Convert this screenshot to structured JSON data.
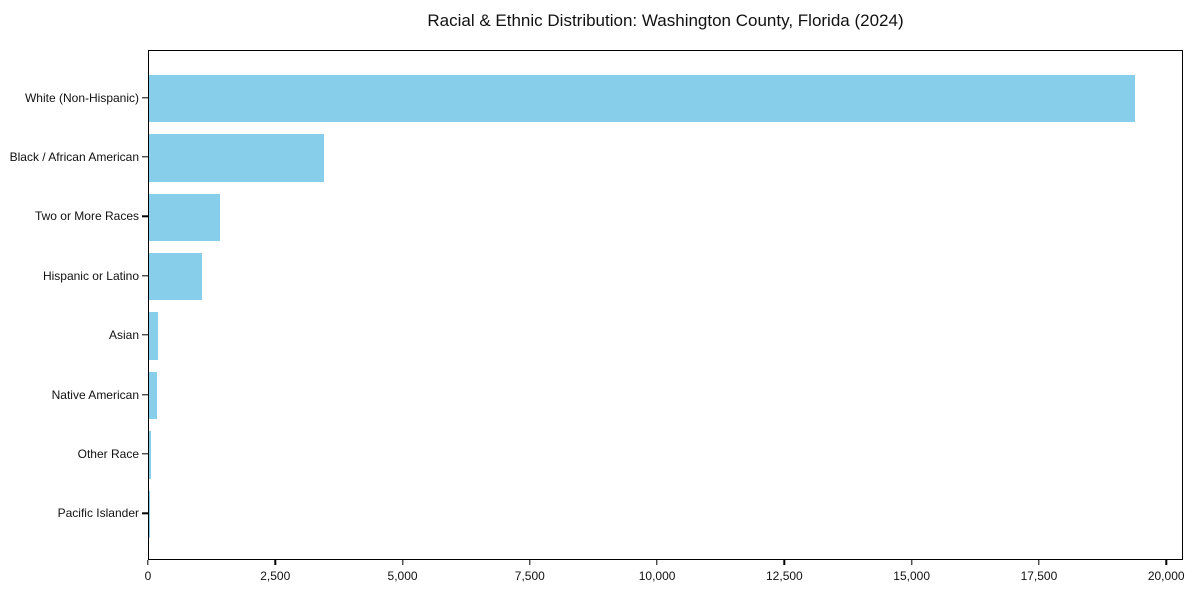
{
  "title": "Racial & Ethnic Distribution: Washington County, Florida (2024)",
  "chart_data": {
    "type": "bar",
    "orientation": "horizontal",
    "title": "Racial & Ethnic Distribution: Washington County, Florida (2024)",
    "xlabel": "",
    "ylabel": "",
    "categories": [
      "White (Non-Hispanic)",
      "Black / African American",
      "Two or More Races",
      "Hispanic or Latino",
      "Asian",
      "Native American",
      "Other Race",
      "Pacific Islander"
    ],
    "values": [
      19360,
      3440,
      1395,
      1040,
      180,
      160,
      30,
      10
    ],
    "xlim": [
      0,
      20330
    ],
    "x_ticks": [
      0,
      2500,
      5000,
      7500,
      10000,
      12500,
      15000,
      17500,
      20000
    ],
    "x_tick_labels": [
      "0",
      "2,500",
      "5,000",
      "7,500",
      "10,000",
      "12,500",
      "15,000",
      "17,500",
      "20,000"
    ],
    "bar_color": "#87CEEB",
    "axis_color": "#000000",
    "grid": false,
    "legend": null
  }
}
